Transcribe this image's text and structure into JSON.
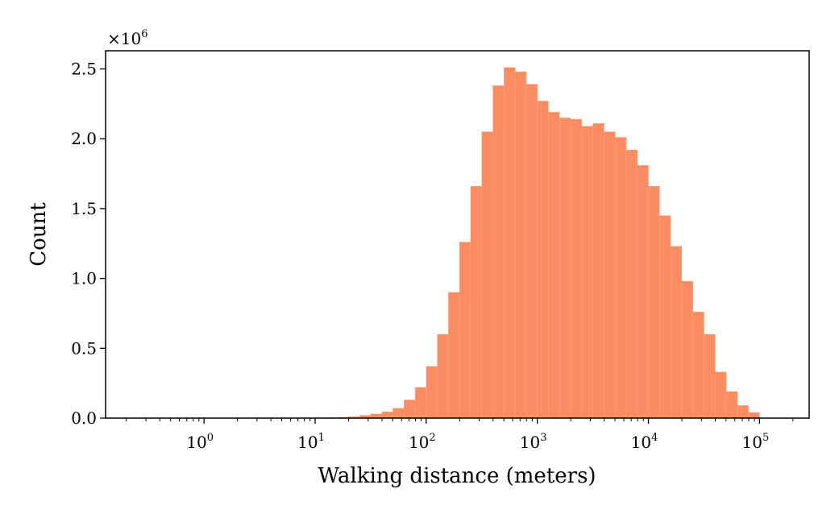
{
  "chart_data": {
    "type": "bar",
    "xlabel": "Walking distance (meters)",
    "ylabel": "Count",
    "x_scale": "log",
    "x_range": [
      0.13,
      280000
    ],
    "y_range": [
      0,
      2.63
    ],
    "y_multiplier": "×10^6",
    "y_multiplier_base": "×10",
    "y_multiplier_exp": "6",
    "bar_color": "#fc8d62",
    "x_ticks": [
      {
        "value": 1,
        "base": "10",
        "exp": "0"
      },
      {
        "value": 10,
        "base": "10",
        "exp": "1"
      },
      {
        "value": 100,
        "base": "10",
        "exp": "2"
      },
      {
        "value": 1000,
        "base": "10",
        "exp": "3"
      },
      {
        "value": 10000,
        "base": "10",
        "exp": "4"
      },
      {
        "value": 100000,
        "base": "10",
        "exp": "5"
      }
    ],
    "y_ticks": [
      {
        "value": 0,
        "label": "0.0"
      },
      {
        "value": 0.5,
        "label": "0.5"
      },
      {
        "value": 1.0,
        "label": "1.0"
      },
      {
        "value": 1.5,
        "label": "1.5"
      },
      {
        "value": 2.0,
        "label": "2.0"
      },
      {
        "value": 2.5,
        "label": "2.5"
      }
    ],
    "bin_edges": [
      1.259,
      1.585,
      1.995,
      2.512,
      3.162,
      3.981,
      5.012,
      6.31,
      7.943,
      10,
      12.59,
      15.85,
      19.95,
      25.12,
      31.62,
      39.81,
      50.12,
      63.1,
      79.43,
      100,
      125.9,
      158.5,
      199.5,
      251.2,
      316.2,
      398.1,
      501.2,
      631,
      794.3,
      1000,
      1259,
      1585,
      1995,
      2512,
      3162,
      3981,
      5012,
      6310,
      7943,
      10000,
      12590,
      15850,
      19950,
      25120,
      31620,
      39810,
      50120,
      63100,
      79430,
      100000
    ],
    "values": [
      0.0005,
      0.0005,
      0.0005,
      0.0005,
      0.0005,
      0.001,
      0.001,
      0.001,
      0.002,
      0.002,
      0.004,
      0.006,
      0.01,
      0.02,
      0.03,
      0.045,
      0.07,
      0.13,
      0.22,
      0.37,
      0.6,
      0.9,
      1.26,
      1.66,
      2.05,
      2.38,
      2.51,
      2.48,
      2.39,
      2.27,
      2.19,
      2.15,
      2.14,
      2.09,
      2.11,
      2.05,
      2.01,
      1.92,
      1.81,
      1.66,
      1.45,
      1.23,
      0.98,
      0.76,
      0.6,
      0.33,
      0.19,
      0.09,
      0.04
    ]
  }
}
